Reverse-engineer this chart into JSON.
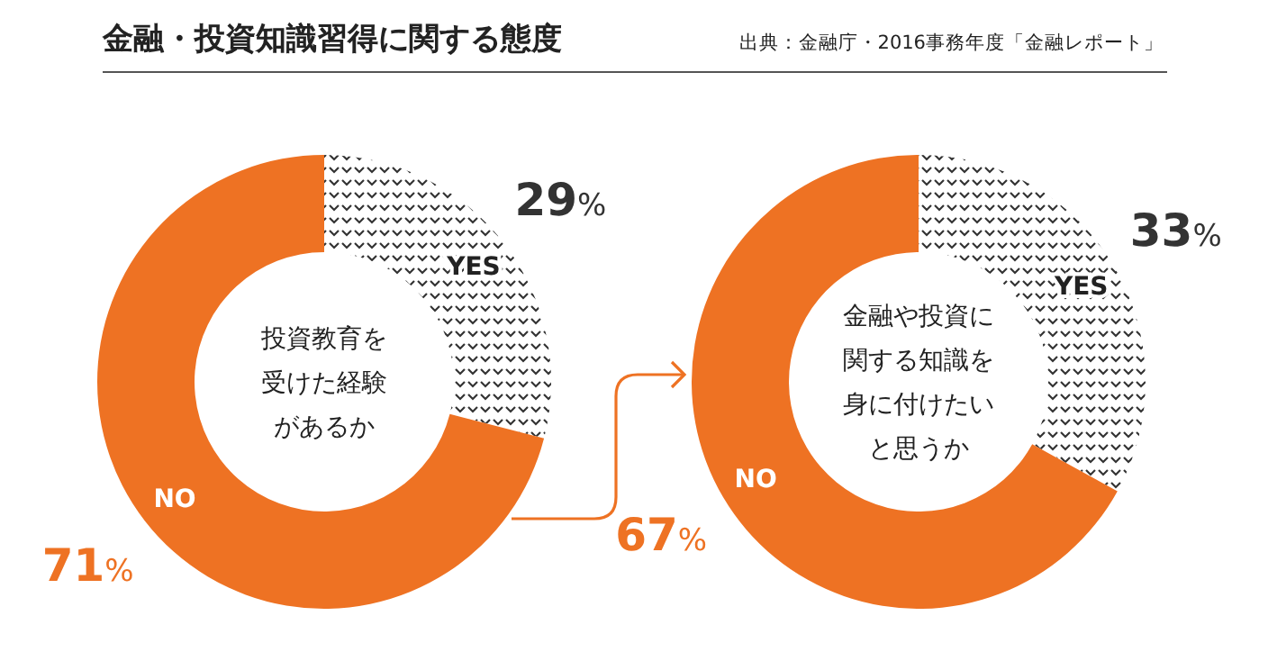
{
  "chart_data": [
    {
      "type": "donut",
      "title": "金融・投資知識習得に関する態度",
      "subtitle": "投資教育を受けた経験があるか",
      "annotations": [
        "出典：金融庁・2016事務年度「金融レポート」"
      ],
      "categories": [
        "YES",
        "NO"
      ],
      "values": [
        29,
        71
      ],
      "value_labels": [
        "29%",
        "71%"
      ],
      "colors": [
        "#333333",
        "#ee7223"
      ]
    },
    {
      "type": "donut",
      "title": "金融や投資に関する知識を身に付けたいと思うか",
      "categories": [
        "YES",
        "NO"
      ],
      "values": [
        33,
        67
      ],
      "value_labels": [
        "33%",
        "67%"
      ],
      "colors": [
        "#333333",
        "#ee7223"
      ]
    }
  ]
}
